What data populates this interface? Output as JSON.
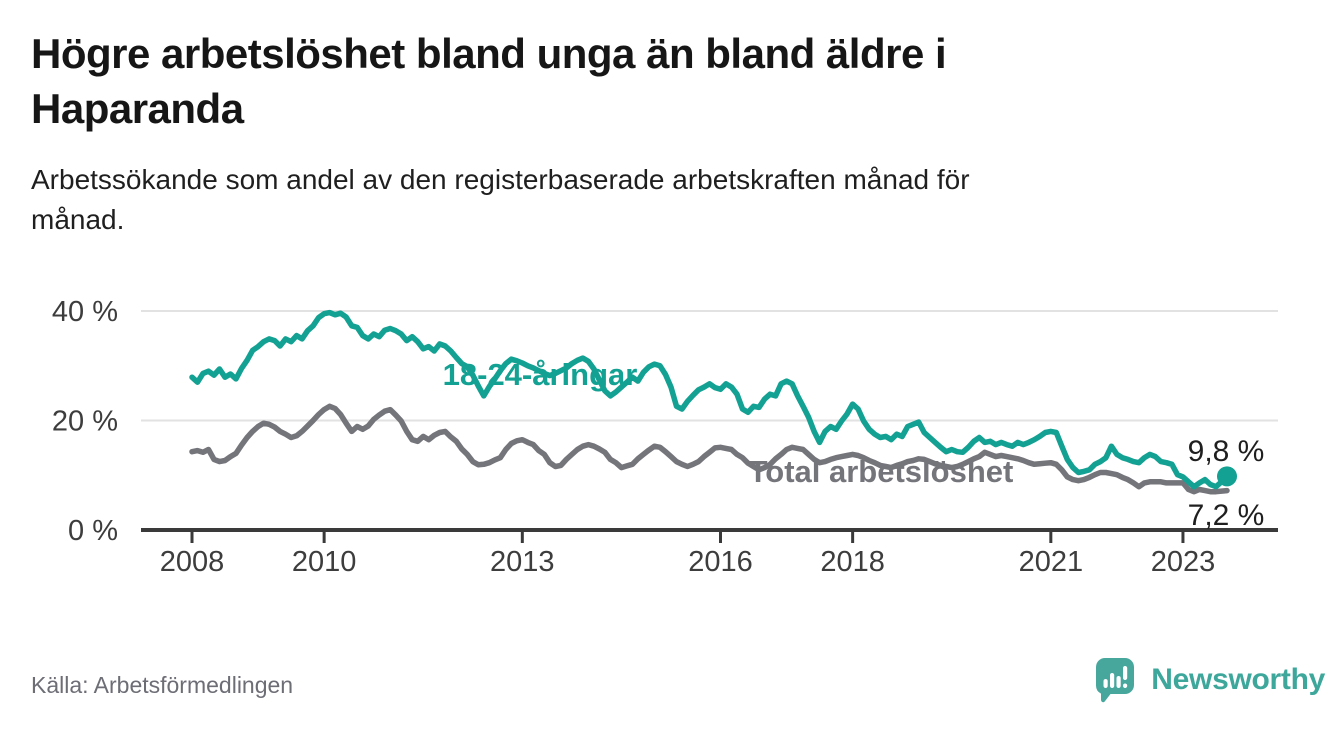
{
  "chart_data": {
    "type": "line",
    "title": "Högre arbetslöshet bland unga än bland äldre i Haparanda",
    "subtitle": "Arbetssökande som andel av den registerbaserade arbetskraften månad för månad.",
    "unit": "%",
    "frequency": "monthly",
    "x_start": {
      "year": 2008,
      "month": 1
    },
    "x_end": {
      "year": 2023,
      "month": 9
    },
    "ylim": [
      0,
      42
    ],
    "grid": "horizontal",
    "legend": "inline-labels",
    "y_ticks": [
      {
        "value": 0,
        "label": "0 %"
      },
      {
        "value": 20,
        "label": "20 %"
      },
      {
        "value": 40,
        "label": "40 %"
      }
    ],
    "x_ticks": [
      {
        "year": 2008,
        "label": "2008"
      },
      {
        "year": 2010,
        "label": "2010"
      },
      {
        "year": 2013,
        "label": "2013"
      },
      {
        "year": 2016,
        "label": "2016"
      },
      {
        "year": 2018,
        "label": "2018"
      },
      {
        "year": 2021,
        "label": "2021"
      },
      {
        "year": 2023,
        "label": "2023"
      }
    ],
    "series": [
      {
        "name": "18-24-åringar",
        "color": "#12a192",
        "end_value": 9.8,
        "end_label": "9,8 %",
        "end_dot": true,
        "values": [
          27.9,
          27,
          28.6,
          29,
          28.3,
          29.4,
          27.9,
          28.5,
          27.6,
          29.5,
          31,
          32.8,
          33.5,
          34.4,
          34.9,
          34.6,
          33.6,
          34.9,
          34.4,
          35.5,
          34.9,
          36.4,
          37.3,
          38.8,
          39.5,
          39.7,
          39.3,
          39.6,
          38.9,
          37.3,
          37,
          35.5,
          34.9,
          35.8,
          35.3,
          36.5,
          36.8,
          36.4,
          35.8,
          34.6,
          35.3,
          34.4,
          33.1,
          33.5,
          32.7,
          34,
          33.6,
          32.7,
          31.5,
          30.4,
          29.8,
          28.3,
          26.3,
          24.5,
          26.2,
          27.6,
          29.1,
          30.4,
          31.2,
          30.9,
          30.5,
          30,
          29.6,
          29.1,
          28.6,
          28.2,
          28.6,
          29.1,
          29.6,
          30.4,
          31,
          31.4,
          30.8,
          29.4,
          27.4,
          25.4,
          24.5,
          25.2,
          26.1,
          27,
          27.9,
          27.2,
          28.8,
          29.8,
          30.3,
          30,
          28.4,
          26.1,
          22.6,
          22.1,
          23.5,
          24.6,
          25.6,
          26.1,
          26.7,
          26,
          25.7,
          26.7,
          26.1,
          24.8,
          22.1,
          21.5,
          22.6,
          22.4,
          23.9,
          24.8,
          24.5,
          26.7,
          27.2,
          26.7,
          24.5,
          22.6,
          20.6,
          18,
          16,
          18,
          18.9,
          18.4,
          19.9,
          21.2,
          23,
          22.1,
          19.9,
          18.4,
          17.5,
          16.9,
          17.1,
          16.5,
          17.5,
          17.1,
          18.9,
          19.3,
          19.7,
          17.8,
          16.9,
          16,
          15.1,
          14.3,
          14.7,
          14.3,
          14.2,
          15.1,
          16.2,
          16.9,
          16,
          16.2,
          15.6,
          16,
          15.6,
          15.3,
          16,
          15.6,
          16,
          16.5,
          17.1,
          17.8,
          18,
          17.8,
          15.3,
          12.9,
          11.4,
          10.5,
          10.7,
          11,
          12,
          12.5,
          13.2,
          15.3,
          13.8,
          13.2,
          12.9,
          12.5,
          12.3,
          13.2,
          13.8,
          13.4,
          12.5,
          12.3,
          12,
          10.1,
          9.7,
          8.8,
          7.9,
          8.6,
          9.2,
          8.3,
          7.9,
          8.8,
          9.8
        ]
      },
      {
        "name": "Total arbetslöshet",
        "color": "#74747b",
        "end_value": 7.2,
        "end_label": "7,2 %",
        "end_dot": false,
        "values": [
          14.3,
          14.5,
          14.2,
          14.7,
          12.9,
          12.5,
          12.7,
          13.4,
          14,
          15.5,
          16.9,
          18,
          18.9,
          19.5,
          19.3,
          18.8,
          18,
          17.5,
          16.9,
          17.2,
          18,
          19,
          20,
          21.1,
          22,
          22.6,
          22.2,
          21.1,
          19.5,
          18,
          18.9,
          18.4,
          19,
          20.2,
          21,
          21.7,
          22,
          21,
          19.9,
          18,
          16.5,
          16.2,
          17.1,
          16.5,
          17.3,
          17.8,
          18,
          17,
          16.2,
          14.8,
          13.8,
          12.5,
          11.9,
          12,
          12.3,
          12.8,
          13.2,
          14.7,
          15.8,
          16.3,
          16.5,
          16,
          15.6,
          14.5,
          13.8,
          12.3,
          11.6,
          11.8,
          12.9,
          13.8,
          14.7,
          15.3,
          15.6,
          15.3,
          14.8,
          14.2,
          12.9,
          12.3,
          11.4,
          11.7,
          12,
          13,
          13.8,
          14.6,
          15.3,
          15.1,
          14.3,
          13.4,
          12.5,
          12,
          11.6,
          12,
          12.5,
          13.4,
          14.2,
          15,
          15.1,
          14.9,
          14.7,
          13.8,
          13.2,
          12.2,
          11.6,
          11,
          11.4,
          12,
          13,
          13.8,
          14.7,
          15.1,
          14.9,
          14.7,
          13.8,
          12.9,
          12.3,
          12.5,
          12.9,
          13.2,
          13.4,
          13.6,
          13.8,
          13.6,
          13.2,
          12.7,
          12.3,
          11.8,
          11.6,
          11.4,
          11.8,
          12.1,
          12.5,
          12.7,
          13,
          12.9,
          12.5,
          12.1,
          11.8,
          11.6,
          11.4,
          11.6,
          12,
          12.5,
          13,
          13.4,
          14.2,
          13.8,
          13.4,
          13.6,
          13.4,
          13.2,
          13,
          12.7,
          12.3,
          12,
          12.1,
          12.2,
          12.3,
          12,
          11,
          9.7,
          9.2,
          9,
          9.2,
          9.6,
          10.1,
          10.5,
          10.5,
          10.3,
          10.1,
          9.6,
          9.2,
          8.6,
          7.9,
          8.6,
          8.8,
          8.8,
          8.8,
          8.6,
          8.6,
          8.6,
          8.6,
          7.4,
          7,
          7.4,
          7.2,
          7,
          7,
          7.1,
          7.2
        ]
      }
    ]
  },
  "footer": {
    "source": "Källa: Arbetsförmedlingen",
    "brand": "Newsworthy",
    "brand_color": "#3ea79c",
    "logo_icon": "speech-bubble-bar-chart"
  }
}
